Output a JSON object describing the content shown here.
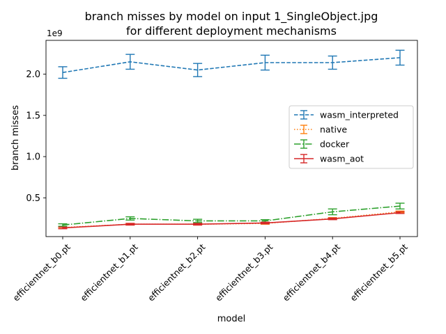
{
  "chart_data": {
    "type": "line",
    "title": "branch misses by model on input 1_SingleObject.jpg\nfor different deployment mechanisms",
    "title_lines": [
      "branch misses by model on input 1_SingleObject.jpg",
      "for different deployment mechanisms"
    ],
    "xlabel": "model",
    "ylabel": "branch misses",
    "y_multiplier_label": "1e9",
    "y_scale_factor": 1000000000,
    "categories": [
      "efficientnet_b0.pt",
      "efficientnet_b1.pt",
      "efficientnet_b2.pt",
      "efficientnet_b3.pt",
      "efficientnet_b4.pt",
      "efficientnet_b5.pt"
    ],
    "ylim": [
      0.03,
      2.41
    ],
    "yticks": [
      0.5,
      1.0,
      1.5,
      2.0
    ],
    "ytick_labels": [
      "0.5",
      "1.0",
      "1.5",
      "2.0"
    ],
    "grid": false,
    "legend_position": "center-right",
    "series": [
      {
        "name": "wasm_interpreted",
        "color": "#1f77b4",
        "dash": "dashed",
        "values": [
          2.02,
          2.15,
          2.05,
          2.14,
          2.14,
          2.2
        ],
        "errors": [
          0.07,
          0.09,
          0.08,
          0.09,
          0.08,
          0.09
        ]
      },
      {
        "name": "native",
        "color": "#ff7f0e",
        "dash": "dotted",
        "values": [
          0.14,
          0.18,
          0.18,
          0.19,
          0.25,
          0.33
        ],
        "errors": [
          0.01,
          0.01,
          0.01,
          0.01,
          0.01,
          0.01
        ]
      },
      {
        "name": "docker",
        "color": "#2ca02c",
        "dash": "dashdot",
        "values": [
          0.17,
          0.25,
          0.22,
          0.22,
          0.33,
          0.4
        ],
        "errors": [
          0.015,
          0.02,
          0.02,
          0.015,
          0.035,
          0.035
        ]
      },
      {
        "name": "wasm_aot",
        "color": "#d62728",
        "dash": "solid",
        "values": [
          0.135,
          0.18,
          0.18,
          0.195,
          0.245,
          0.32
        ],
        "errors": [
          0.01,
          0.01,
          0.01,
          0.01,
          0.01,
          0.01
        ]
      }
    ]
  }
}
